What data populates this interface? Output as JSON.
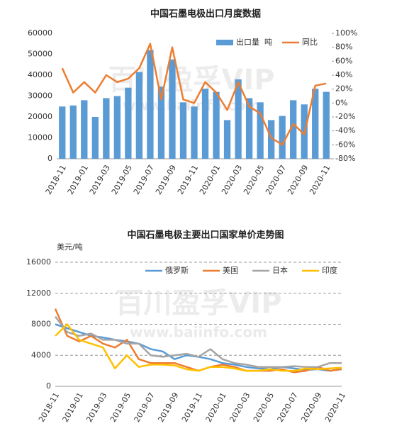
{
  "chart_data": [
    {
      "type": "bar",
      "title": "中国石墨电极出口月度数据",
      "watermark": "百川盈孚VIP",
      "watermark_url": "www.baiinfo.com",
      "categories": [
        "2018-11",
        null,
        "2019-01",
        null,
        "2019-03",
        null,
        "2019-05",
        null,
        "2019-07",
        null,
        "2019-09",
        null,
        "2019-11",
        null,
        "2020-01",
        null,
        "2020-03",
        null,
        "2020-05",
        null,
        "2020-07",
        null,
        "2020-09",
        null,
        "2020-11"
      ],
      "series": [
        {
          "name": "出口量  吨",
          "type": "bar",
          "color": "#5b9bd5",
          "values": [
            25000,
            25500,
            28000,
            20000,
            29000,
            30000,
            34000,
            41500,
            52000,
            34500,
            47500,
            27000,
            25000,
            33500,
            32000,
            18500,
            38000,
            29000,
            27000,
            18500,
            20500,
            28000,
            26000,
            33500,
            32000
          ]
        },
        {
          "name": "同比",
          "type": "line",
          "axis": "y2",
          "color": "#ed7d31",
          "values": [
            50,
            15,
            30,
            15,
            40,
            30,
            35,
            50,
            85,
            5,
            80,
            5,
            0,
            30,
            15,
            -10,
            30,
            -5,
            -15,
            -50,
            -60,
            -30,
            -45,
            25,
            28
          ]
        }
      ],
      "ylim": [
        0,
        60000
      ],
      "yticks": [
        0,
        10000,
        20000,
        30000,
        40000,
        50000,
        60000
      ],
      "y2lim": [
        -80,
        100
      ],
      "y2ticks": [
        {
          "value": -80,
          "label": "-80%"
        },
        {
          "value": -60,
          "label": "-60%"
        },
        {
          "value": -40,
          "label": "-40%"
        },
        {
          "value": -20,
          "label": "-20%"
        },
        {
          "value": 0,
          "label": "0%"
        },
        {
          "value": 20,
          "label": "20%"
        },
        {
          "value": 40,
          "label": "40%"
        },
        {
          "value": 60,
          "label": "60%"
        },
        {
          "value": 80,
          "label": "80%"
        },
        {
          "value": 100,
          "label": "100%"
        }
      ],
      "grid": false,
      "legend": "top-right"
    },
    {
      "type": "line",
      "title": "中国石墨电极主要出口国家单价走势图",
      "y_label": "美元/吨",
      "watermark": "百川盈孚VIP",
      "watermark_url": "www.baiinfo.com",
      "categories": [
        "2018-11",
        null,
        "2019-01",
        null,
        "2019-03",
        null,
        "2019-05",
        null,
        "2019-07",
        null,
        "2019-09",
        null,
        "2019-11",
        null,
        "2020-01",
        null,
        "2020-03",
        null,
        "2020-05",
        null,
        "2020-07",
        null,
        "2020-09",
        null,
        "2020-11"
      ],
      "series": [
        {
          "name": "俄罗斯",
          "color": "#5b9bd5",
          "values": [
            8000,
            7500,
            7000,
            6500,
            6300,
            6000,
            5800,
            5500,
            4800,
            4500,
            3500,
            4000,
            3800,
            3500,
            3000,
            2800,
            2500,
            2300,
            2200,
            2500,
            2300,
            2100,
            2200,
            2000,
            2200
          ]
        },
        {
          "name": "美国",
          "color": "#ed7d31",
          "values": [
            10000,
            6500,
            5800,
            6500,
            5500,
            5000,
            6000,
            3500,
            3000,
            3000,
            3000,
            2500,
            2000,
            2500,
            2800,
            2500,
            2000,
            2000,
            2000,
            2200,
            1800,
            2000,
            2500,
            2000,
            2200
          ]
        },
        {
          "name": "日本",
          "color": "#a5a5a5",
          "values": [
            9000,
            7000,
            6500,
            6800,
            6000,
            6000,
            5500,
            5500,
            4000,
            3800,
            4000,
            4200,
            3800,
            4800,
            3500,
            3000,
            2800,
            2500,
            2500,
            2500,
            2600,
            2500,
            2500,
            3000,
            3000
          ]
        },
        {
          "name": "印度",
          "color": "#ffc000",
          "values": [
            6500,
            8000,
            6000,
            5500,
            5000,
            2300,
            4000,
            2500,
            2800,
            2800,
            2700,
            2200,
            2000,
            2500,
            2500,
            2300,
            2000,
            2000,
            2200,
            2000,
            2000,
            2300,
            2200,
            2300,
            2400
          ]
        }
      ],
      "ylim": [
        0,
        16000
      ],
      "yticks": [
        0,
        4000,
        8000,
        12000,
        16000
      ],
      "grid": true,
      "legend": "top"
    }
  ]
}
